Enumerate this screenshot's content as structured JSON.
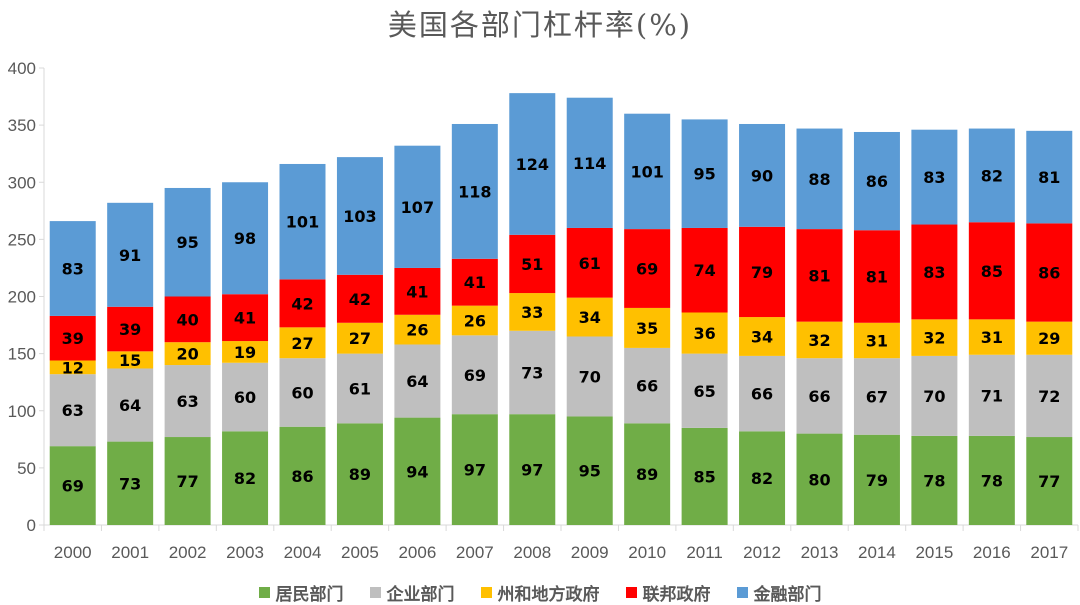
{
  "chart_data": {
    "type": "bar",
    "stacked": true,
    "title": "美国各部门杠杆率(%)",
    "categories": [
      "2000",
      "2001",
      "2002",
      "2003",
      "2004",
      "2005",
      "2006",
      "2007",
      "2008",
      "2009",
      "2010",
      "2011",
      "2012",
      "2013",
      "2014",
      "2015",
      "2016",
      "2017"
    ],
    "ylim": [
      0,
      400
    ],
    "yticks": [
      0,
      50,
      100,
      150,
      200,
      250,
      300,
      350,
      400
    ],
    "grid": false,
    "legend_position": "bottom",
    "series": [
      {
        "name": "居民部门",
        "color": "#70AD47",
        "values": [
          69,
          73,
          77,
          82,
          86,
          89,
          94,
          97,
          97,
          95,
          89,
          85,
          82,
          80,
          79,
          78,
          78,
          77
        ]
      },
      {
        "name": "企业部门",
        "color": "#BFBFBF",
        "values": [
          63,
          64,
          63,
          60,
          60,
          61,
          64,
          69,
          73,
          70,
          66,
          65,
          66,
          66,
          67,
          70,
          71,
          72
        ]
      },
      {
        "name": "州和地方政府",
        "color": "#FFC000",
        "values": [
          12,
          15,
          20,
          19,
          27,
          27,
          26,
          26,
          33,
          34,
          35,
          36,
          34,
          32,
          31,
          32,
          31,
          29
        ]
      },
      {
        "name": "联邦政府",
        "color": "#FF0000",
        "values": [
          39,
          39,
          40,
          41,
          42,
          42,
          41,
          41,
          51,
          61,
          69,
          74,
          79,
          81,
          81,
          83,
          85,
          86
        ]
      },
      {
        "name": "金融部门",
        "color": "#5B9BD5",
        "values": [
          83,
          91,
          95,
          98,
          101,
          103,
          107,
          118,
          124,
          114,
          101,
          95,
          90,
          88,
          86,
          83,
          82,
          81
        ]
      }
    ]
  }
}
